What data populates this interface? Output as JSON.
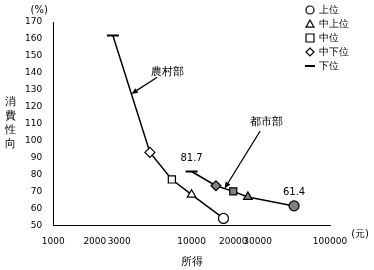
{
  "chart_data": {
    "type": "scatter",
    "x_label": "所得",
    "y_label": "消費性向",
    "x_unit": "(元)",
    "y_unit": "(%)",
    "log": "x",
    "grid": false,
    "xlim": [
      1000,
      100000
    ],
    "xticks": [
      1000,
      2000,
      3000,
      10000,
      20000,
      30000,
      100000
    ],
    "ylim": [
      50,
      170
    ],
    "yticks": [
      50,
      60,
      70,
      80,
      90,
      100,
      110,
      120,
      130,
      140,
      150,
      160,
      170
    ],
    "legend": "top-right",
    "line_style": "solid",
    "data_labels": true,
    "regions": [
      "農村部",
      "都市部"
    ],
    "series": [
      {
        "name": "上位",
        "marker": "circle",
        "color": "#000000",
        "x": [
          17000,
          55000
        ],
        "values": [
          54,
          61.4
        ],
        "value_labels": [
          null,
          "61.4"
        ]
      },
      {
        "name": "中上位",
        "marker": "triangle",
        "color": "#000000",
        "x": [
          10000,
          25500
        ],
        "values": [
          68,
          66.7
        ]
      },
      {
        "name": "中位",
        "marker": "square",
        "color": "#000000",
        "x": [
          7200,
          20000
        ],
        "values": [
          77,
          70
        ]
      },
      {
        "name": "中下位",
        "marker": "diamond",
        "color": "#000000",
        "x": [
          5000,
          15000
        ],
        "values": [
          93,
          73.3
        ]
      },
      {
        "name": "下位",
        "marker": "line",
        "color": "#000000",
        "x": [
          2700,
          10000
        ],
        "values": [
          162,
          81.7
        ],
        "value_labels": [
          null,
          "81.7"
        ]
      }
    ]
  }
}
